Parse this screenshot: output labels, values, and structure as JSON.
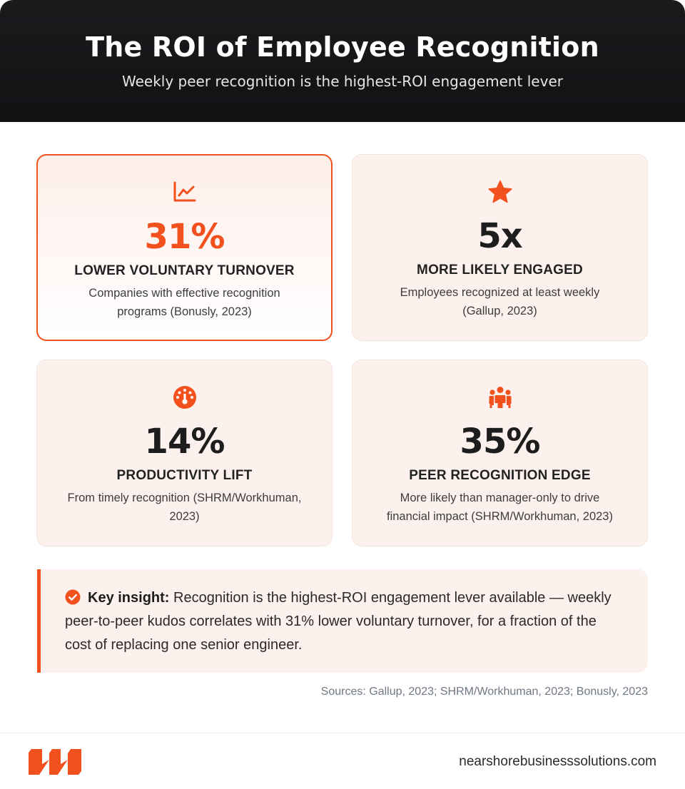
{
  "header": {
    "title": "The ROI of Employee Recognition",
    "subtitle": "Weekly peer recognition is the highest-ROI engagement lever"
  },
  "cards": [
    {
      "icon": "line-chart-icon",
      "stat": "31%",
      "label": "LOWER VOLUNTARY TURNOVER",
      "desc": "Companies with effective recognition programs (Bonusly, 2023)",
      "highlighted": true
    },
    {
      "icon": "star-icon",
      "stat": "5x",
      "label": "MORE LIKELY ENGAGED",
      "desc": "Employees recognized at least weekly (Gallup, 2023)",
      "highlighted": false
    },
    {
      "icon": "gauge-icon",
      "stat": "14%",
      "label": "PRODUCTIVITY LIFT",
      "desc": "From timely recognition (SHRM/Workhuman, 2023)",
      "highlighted": false
    },
    {
      "icon": "people-group-icon",
      "stat": "35%",
      "label": "PEER RECOGNITION EDGE",
      "desc": "More likely than manager-only to drive financial impact (SHRM/Workhuman, 2023)",
      "highlighted": false
    }
  ],
  "insight": {
    "icon": "check-circle-icon",
    "lead": "Key insight:",
    "body": "Recognition is the highest-ROI engagement lever available — weekly peer-to-peer kudos correlates with 31% lower voluntary turnover, for a fraction of the cost of replacing one senior engineer."
  },
  "sources": "Sources: Gallup, 2023; SHRM/Workhuman, 2023; Bonusly, 2023",
  "footer": {
    "logo_icon": "brand-logo-icon",
    "site": "nearshorebusinesssolutions.com"
  },
  "colors": {
    "accent": "#f2501c",
    "header_bg": "#18171a",
    "card_bg": "#fdf1ee"
  }
}
